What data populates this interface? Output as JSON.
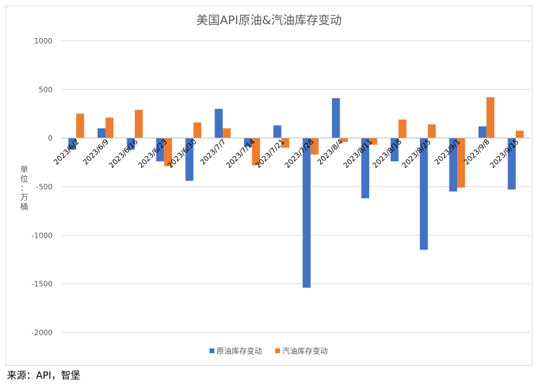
{
  "chart_data": {
    "type": "bar",
    "title": "美国API原油&汽油库存变动",
    "ylabel_chars": [
      "单",
      "位",
      "：",
      "万",
      "桶"
    ],
    "xlabel": "",
    "ylim": [
      -2000,
      1000
    ],
    "yticks": [
      1000,
      500,
      0,
      -500,
      -1000,
      -1500,
      -2000
    ],
    "grid": true,
    "legend_position": "bottom",
    "categories": [
      "2023/6/2",
      "2023/6/9",
      "2023/6/16",
      "2023/6/23",
      "2023/6/30",
      "2023/7/7",
      "2023/7/14",
      "2023/7/21",
      "2023/7/28",
      "2023/8/4",
      "2023/8/11",
      "2023/8/18",
      "2023/8/25",
      "2023/9/1",
      "2023/9/8",
      "2023/9/15"
    ],
    "series": [
      {
        "name": "原油库存变动",
        "color": "#4472C4",
        "values": [
          -120,
          100,
          -120,
          -240,
          -440,
          300,
          -90,
          130,
          -1540,
          410,
          -620,
          -240,
          -1150,
          -550,
          120,
          -530
        ]
      },
      {
        "name": "汽油库存变动",
        "color": "#ED7D31",
        "values": [
          250,
          210,
          290,
          -290,
          160,
          100,
          -280,
          -100,
          -170,
          -40,
          -70,
          190,
          140,
          -510,
          420,
          75
        ]
      }
    ]
  },
  "source_note": "来源：API，智堡"
}
